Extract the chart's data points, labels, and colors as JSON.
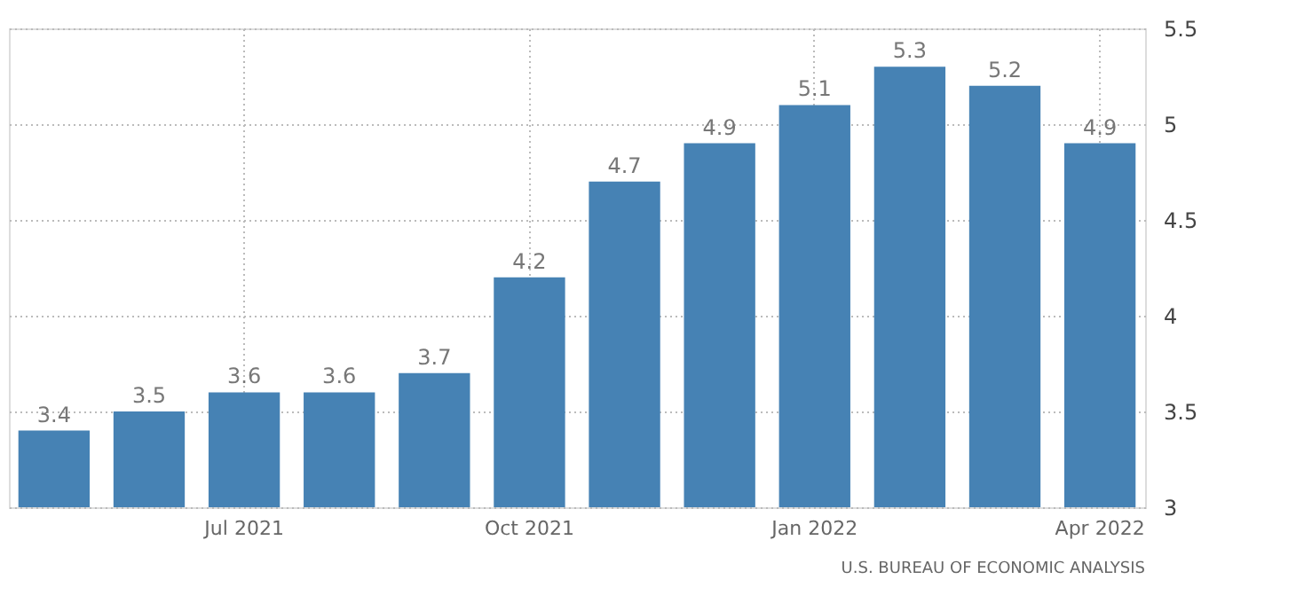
{
  "chart_data": {
    "type": "bar",
    "categories": [
      null,
      null,
      "Jul 2021",
      null,
      null,
      "Oct 2021",
      null,
      null,
      "Jan 2022",
      null,
      null,
      "Apr 2022"
    ],
    "values": [
      3.4,
      3.5,
      3.6,
      3.6,
      3.7,
      4.2,
      4.7,
      4.9,
      5.1,
      5.3,
      5.2,
      4.9
    ],
    "color": "#4682b4",
    "ylim": [
      3,
      5.5
    ],
    "yticks": [
      3,
      3.5,
      4,
      4.5,
      5,
      5.5
    ],
    "grid": true,
    "data_labels": true,
    "annotations": [
      "U.S. BUREAU OF ECONOMIC ANALYSIS"
    ]
  }
}
